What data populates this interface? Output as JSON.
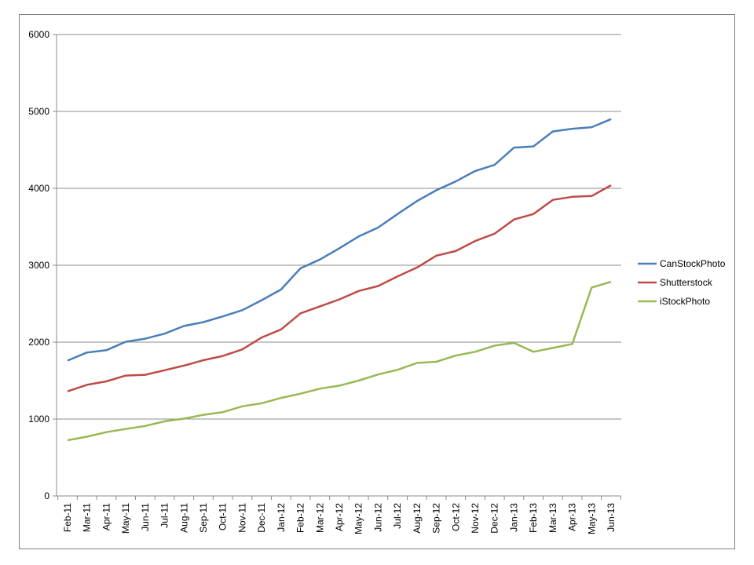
{
  "chart_data": {
    "type": "line",
    "title": "",
    "xlabel": "",
    "ylabel": "",
    "ylim": [
      0,
      6000
    ],
    "yticks": [
      0,
      1000,
      2000,
      3000,
      4000,
      5000,
      6000
    ],
    "grid": true,
    "legend_position": "right",
    "categories": [
      "Feb-11",
      "Mar-11",
      "Apr-11",
      "May-11",
      "Jun-11",
      "Jul-11",
      "Aug-11",
      "Sep-11",
      "Oct-11",
      "Nov-11",
      "Dec-11",
      "Jan-12",
      "Feb-12",
      "Mar-12",
      "Apr-12",
      "May-12",
      "Jun-12",
      "Jul-12",
      "Aug-12",
      "Sep-12",
      "Oct-12",
      "Nov-12",
      "Dec-12",
      "Jan-13",
      "Feb-13",
      "Mar-13",
      "Apr-13",
      "May-13",
      "Jun-13"
    ],
    "series": [
      {
        "name": "CanStockPhoto",
        "color": "#4a7ebb",
        "values": [
          1760,
          1865,
          1895,
          2005,
          2045,
          2110,
          2210,
          2260,
          2335,
          2415,
          2545,
          2685,
          2960,
          3075,
          3220,
          3375,
          3490,
          3665,
          3835,
          3975,
          4090,
          4225,
          4305,
          4530,
          4545,
          4740,
          4775,
          4795,
          4900
        ]
      },
      {
        "name": "Shutterstock",
        "color": "#be4b48",
        "values": [
          1360,
          1445,
          1490,
          1565,
          1575,
          1635,
          1695,
          1765,
          1820,
          1905,
          2060,
          2165,
          2375,
          2465,
          2555,
          2665,
          2730,
          2855,
          2970,
          3125,
          3185,
          3315,
          3410,
          3595,
          3665,
          3850,
          3890,
          3900,
          4040
        ]
      },
      {
        "name": "iStockPhoto",
        "color": "#98b954",
        "values": [
          725,
          770,
          830,
          870,
          910,
          970,
          1005,
          1055,
          1090,
          1165,
          1205,
          1275,
          1330,
          1395,
          1435,
          1500,
          1580,
          1640,
          1730,
          1745,
          1825,
          1875,
          1955,
          1990,
          1875,
          1925,
          1975,
          2710,
          2785
        ]
      }
    ]
  }
}
